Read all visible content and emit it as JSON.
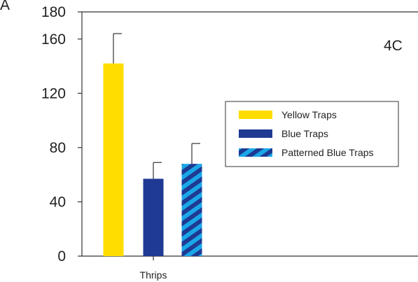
{
  "chart_data": {
    "type": "bar",
    "panel_label": "4C",
    "ylabel": "A",
    "categories": [
      "Thrips"
    ],
    "ylim": [
      0,
      180
    ],
    "yticks": [
      0,
      40,
      80,
      120,
      160,
      180
    ],
    "grid": false,
    "legend_position": "right",
    "series": [
      {
        "name": "Yellow Traps",
        "values": [
          142
        ],
        "error": [
          22
        ],
        "color": "#FFDD00",
        "pattern": "solid"
      },
      {
        "name": "Blue Traps",
        "values": [
          57
        ],
        "error": [
          12
        ],
        "color": "#1F3A93",
        "pattern": "solid"
      },
      {
        "name": "Patterned Blue Traps",
        "values": [
          68
        ],
        "error": [
          15
        ],
        "color": "#1F3A93",
        "color2": "#1AA7E8",
        "pattern": "stripes"
      }
    ]
  }
}
